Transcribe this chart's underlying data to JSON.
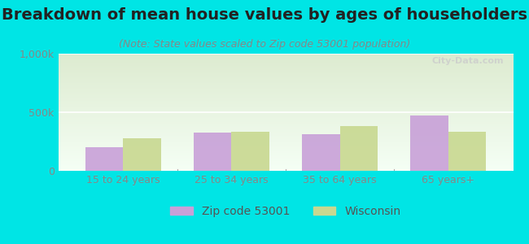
{
  "title": "Breakdown of mean house values by ages of householders",
  "subtitle": "(Note: State values scaled to Zip code 53001 population)",
  "categories": [
    "15 to 24 years",
    "25 to 34 years",
    "35 to 64 years",
    "65 years+"
  ],
  "zip_values": [
    200000,
    325000,
    310000,
    475000
  ],
  "state_values": [
    275000,
    330000,
    380000,
    330000
  ],
  "zip_color": "#c8a0d8",
  "state_color": "#c8d890",
  "background_outer": "#00e5e5",
  "background_plot_top": "#ddebd0",
  "background_plot_bottom": "#f5fff5",
  "ylim": [
    0,
    1000000
  ],
  "yticks": [
    0,
    500000,
    1000000
  ],
  "ytick_labels": [
    "0",
    "500k",
    "1,000k"
  ],
  "legend_zip_label": "Zip code 53001",
  "legend_state_label": "Wisconsin",
  "watermark": "City-Data.com",
  "bar_width": 0.35,
  "title_fontsize": 14,
  "subtitle_fontsize": 9,
  "tick_fontsize": 9,
  "legend_fontsize": 10
}
